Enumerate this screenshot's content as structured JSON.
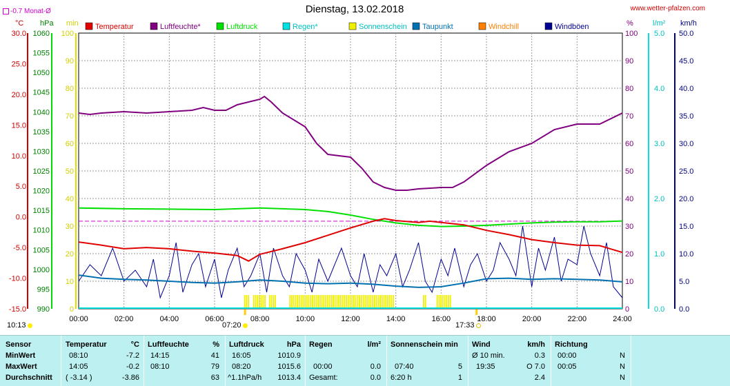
{
  "title": "Dienstag, 13.02.2018",
  "source": "www.wetter-pfalzen.com",
  "month_avg_label": "-0.7 Monat-Ø",
  "sunrise": "07:20",
  "sunset": "17:33",
  "update_time": "10:13",
  "colors": {
    "temperatur": "#e00000",
    "luftfeuchte": "#800080",
    "luftdruck": "#00e000",
    "regen": "#00e0e0",
    "sonnenschein": "#f0f000",
    "taupunkt": "#0070b0",
    "windchill": "#ff8000",
    "windboen": "#000090",
    "stats_bg": "#bdf0f0"
  },
  "chart_data": {
    "type": "line",
    "x_ticks": [
      "00:00",
      "02:00",
      "04:00",
      "06:00",
      "08:00",
      "10:00",
      "12:00",
      "14:00",
      "16:00",
      "18:00",
      "20:00",
      "22:00",
      "24:00"
    ],
    "axes": {
      "temperature": {
        "unit": "°C",
        "min": -15,
        "max": 30,
        "ticks": [
          "30.0",
          "25.0",
          "20.0",
          "15.0",
          "10.0",
          "5.0",
          "0.0",
          "-5.0",
          "-10.0",
          "-15.0"
        ]
      },
      "pressure": {
        "unit": "hPa",
        "min": 990,
        "max": 1060,
        "ticks": [
          "1060",
          "1055",
          "1050",
          "1045",
          "1040",
          "1035",
          "1030",
          "1025",
          "1020",
          "1015",
          "1010",
          "1005",
          "1000",
          "995",
          "990"
        ]
      },
      "sunshine": {
        "unit": "min",
        "min": 0,
        "max": 100,
        "ticks": [
          "100",
          "90",
          "80",
          "70",
          "60",
          "50",
          "40",
          "30",
          "20",
          "10",
          "0"
        ]
      },
      "humidity": {
        "unit": "%",
        "min": 0,
        "max": 100,
        "ticks": [
          "100",
          "90",
          "80",
          "70",
          "60",
          "50",
          "40",
          "30",
          "20",
          "10",
          "0"
        ]
      },
      "rain": {
        "unit": "l/m²",
        "min": 0,
        "max": 5,
        "ticks": [
          "5.0",
          "4.0",
          "3.0",
          "2.0",
          "1.0",
          "0.0"
        ]
      },
      "wind": {
        "unit": "km/h",
        "min": 0,
        "max": 50,
        "ticks": [
          "50.0",
          "45.0",
          "40.0",
          "35.0",
          "30.0",
          "25.0",
          "20.0",
          "15.0",
          "10.0",
          "5.0",
          "0.0"
        ]
      }
    },
    "legend": [
      {
        "key": "temperatur",
        "label": "Temperatur"
      },
      {
        "key": "luftfeuchte",
        "label": "Luftfeuchte*"
      },
      {
        "key": "luftdruck",
        "label": "Luftdruck"
      },
      {
        "key": "regen",
        "label": "Regen*"
      },
      {
        "key": "sonnenschein",
        "label": "Sonnenschein"
      },
      {
        "key": "taupunkt",
        "label": "Taupunkt"
      },
      {
        "key": "windchill",
        "label": "Windchill"
      },
      {
        "key": "windboen",
        "label": "Windböen"
      }
    ],
    "month_avg_temp": -0.7,
    "series": [
      {
        "key": "temperatur",
        "axis": "temperature",
        "x": [
          0,
          1,
          2,
          3,
          4,
          5,
          6,
          7,
          7.5,
          8,
          9,
          10,
          11,
          12,
          13,
          13.5,
          14,
          15,
          15.5,
          16,
          17,
          18,
          19,
          20,
          21,
          22,
          23,
          24
        ],
        "y": [
          -4.1,
          -4.6,
          -5.2,
          -5.0,
          -5.2,
          -5.6,
          -5.9,
          -6.3,
          -7.2,
          -6.1,
          -5.2,
          -4.2,
          -3.0,
          -1.8,
          -0.7,
          -0.3,
          -0.6,
          -0.9,
          -0.7,
          -0.9,
          -1.3,
          -2.2,
          -2.9,
          -3.7,
          -4.2,
          -4.6,
          -4.7,
          -5.8
        ]
      },
      {
        "key": "luftfeuchte",
        "axis": "humidity",
        "x": [
          0,
          0.5,
          1,
          2,
          3,
          4,
          5,
          5.5,
          6,
          6.5,
          7,
          8,
          8.2,
          8.5,
          9,
          10,
          10.5,
          11,
          12,
          12.5,
          13,
          13.5,
          14,
          14.5,
          15,
          16,
          16.5,
          17,
          18,
          19,
          20,
          21,
          22,
          23,
          24
        ],
        "y": [
          71,
          70.5,
          71,
          71.5,
          71,
          71.5,
          72,
          73,
          72,
          72,
          74,
          76,
          77,
          75,
          71,
          66,
          60,
          56,
          55,
          51,
          46,
          44,
          43,
          43,
          43.5,
          44,
          44,
          46,
          52,
          57,
          60,
          65,
          67,
          67,
          71
        ]
      },
      {
        "key": "luftdruck",
        "axis": "pressure",
        "x": [
          0,
          2,
          4,
          6,
          8,
          10,
          11,
          12,
          13,
          14,
          15,
          16,
          17,
          18,
          19,
          20,
          21,
          22,
          23,
          24
        ],
        "y": [
          1015.6,
          1015.4,
          1015.3,
          1015.2,
          1015.6,
          1015.2,
          1014.7,
          1013.8,
          1012.7,
          1011.8,
          1011.2,
          1010.9,
          1011.0,
          1011.2,
          1011.5,
          1011.8,
          1012.0,
          1012.1,
          1012.1,
          1012.3
        ]
      },
      {
        "key": "taupunkt",
        "axis": "temperature",
        "x": [
          0,
          1,
          2,
          3,
          4,
          5,
          6,
          7,
          8,
          9,
          10,
          11,
          12,
          13,
          14,
          15,
          16,
          17,
          18,
          19,
          20,
          21,
          22,
          23,
          24
        ],
        "y": [
          -9.5,
          -10.0,
          -10.2,
          -10.3,
          -10.5,
          -10.7,
          -10.8,
          -10.6,
          -10.3,
          -10.5,
          -10.8,
          -10.9,
          -10.8,
          -11.0,
          -11.3,
          -11.5,
          -11.4,
          -10.8,
          -10.1,
          -10.0,
          -10.2,
          -10.1,
          -10.2,
          -10.3,
          -10.6
        ]
      },
      {
        "key": "windboen",
        "axis": "wind",
        "x": [
          0,
          0.5,
          1,
          1.5,
          2,
          2.5,
          3,
          3.3,
          3.6,
          4,
          4.3,
          4.6,
          5,
          5.3,
          5.6,
          6,
          6.3,
          6.6,
          7,
          7.3,
          7.6,
          8,
          8.3,
          8.6,
          9,
          9.3,
          9.6,
          10,
          10.3,
          10.6,
          11,
          11.3,
          11.6,
          12,
          12.3,
          12.6,
          13,
          13.3,
          13.6,
          14,
          14.3,
          14.6,
          15,
          15.3,
          15.6,
          16,
          16.3,
          16.6,
          17,
          17.3,
          17.6,
          18,
          18.3,
          18.6,
          19,
          19.3,
          19.6,
          20,
          20.3,
          20.6,
          21,
          21.3,
          21.6,
          22,
          22.3,
          22.6,
          23,
          23.3,
          23.6,
          24
        ],
        "y": [
          5,
          8,
          6,
          11,
          5,
          7,
          4,
          9,
          2,
          6,
          12,
          3,
          8,
          10,
          4,
          9,
          2,
          7,
          11,
          4,
          6,
          10,
          3,
          11,
          6,
          4,
          10,
          7,
          3,
          9,
          5,
          8,
          11,
          6,
          4,
          10,
          3,
          8,
          6,
          10,
          4,
          7,
          12,
          5,
          3,
          9,
          6,
          11,
          4,
          8,
          10,
          5,
          7,
          12,
          9,
          6,
          15,
          4,
          11,
          7,
          13,
          5,
          9,
          8,
          15,
          10,
          6,
          12,
          4,
          2
        ]
      }
    ],
    "sunshine_intervals": [
      [
        7.3,
        7.5
      ],
      [
        7.7,
        8.2
      ],
      [
        8.4,
        8.7
      ],
      [
        9.3,
        13.9
      ],
      [
        15.2,
        15.3
      ],
      [
        15.8,
        16.4
      ]
    ],
    "sunshine_level": 5
  },
  "stats": {
    "sensor": {
      "hdr": "Sensor",
      "rows": [
        "MinWert",
        "MaxWert",
        "Durchschnitt"
      ]
    },
    "temperatur": {
      "hdr": "Temperatur",
      "unit": "°C",
      "rows": [
        {
          "t": "08:10",
          "v": "-7.2"
        },
        {
          "t": "14:05",
          "v": "-0.2"
        },
        {
          "t": "( -3.14 )",
          "v": "-3.86"
        }
      ]
    },
    "luftfeuchte": {
      "hdr": "Luftfeuchte",
      "unit": "%",
      "rows": [
        {
          "t": "14:15",
          "v": "41"
        },
        {
          "t": "08:10",
          "v": "79"
        },
        {
          "t": "",
          "v": "63"
        }
      ]
    },
    "luftdruck": {
      "hdr": "Luftdruck",
      "unit": "hPa",
      "rows": [
        {
          "t": "16:05",
          "v": "1010.9"
        },
        {
          "t": "08:20",
          "v": "1015.6"
        },
        {
          "t": "^1.1hPa/h",
          "v": "1013.4"
        }
      ]
    },
    "regen": {
      "hdr": "Regen",
      "unit": "l/m²",
      "rows": [
        {
          "t": "",
          "v": ""
        },
        {
          "t": "00:00",
          "v": "0.0"
        },
        {
          "t": "Gesamt:",
          "v": "0.0"
        }
      ]
    },
    "sonnenschein": {
      "hdr": "Sonnenschein min",
      "unit": "",
      "rows": [
        {
          "t": "",
          "v": ""
        },
        {
          "t": "07:40",
          "v": "5"
        },
        {
          "t": "6:20 h",
          "v": "1"
        }
      ]
    },
    "wind": {
      "hdr": "Wind",
      "unit": "km/h",
      "rows": [
        {
          "t": "Ø 10 min.",
          "v": "0.3"
        },
        {
          "t": "19:35",
          "v": "O 7.0"
        },
        {
          "t": "",
          "v": "2.4"
        }
      ]
    },
    "richtung": {
      "hdr": "Richtung",
      "unit": "",
      "rows": [
        {
          "t": "00:00",
          "v": "N"
        },
        {
          "t": "00:05",
          "v": "N"
        },
        {
          "t": "",
          "v": "N"
        }
      ]
    }
  }
}
